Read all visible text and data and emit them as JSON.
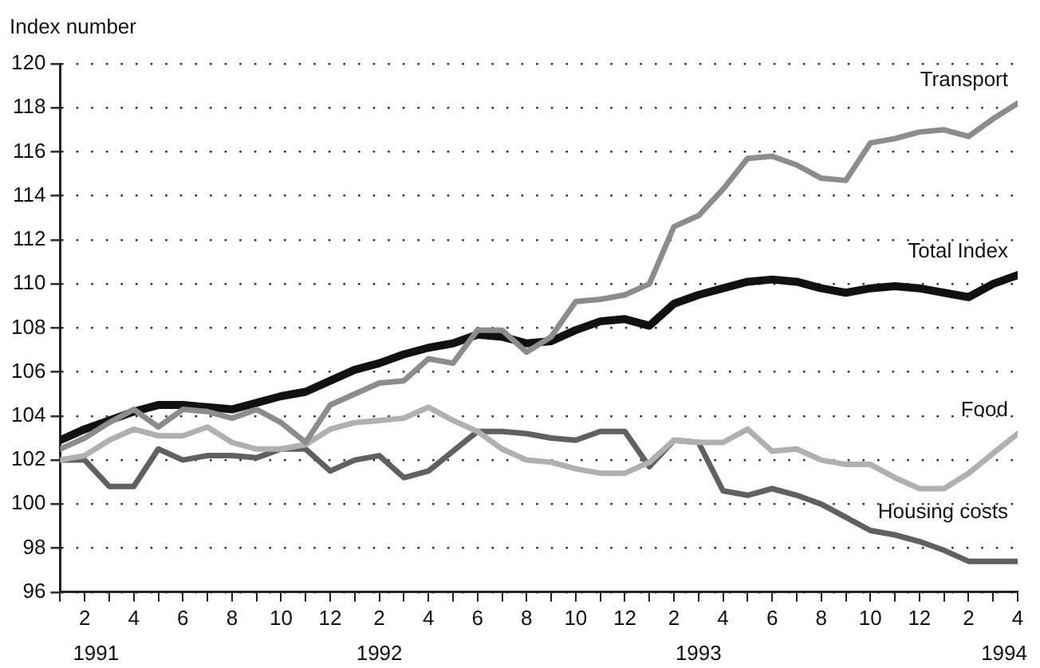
{
  "chart_data": {
    "type": "line",
    "ylabel": "Index number",
    "x": [
      "1991-01",
      "1991-02",
      "1991-03",
      "1991-04",
      "1991-05",
      "1991-06",
      "1991-07",
      "1991-08",
      "1991-09",
      "1991-10",
      "1991-11",
      "1991-12",
      "1992-01",
      "1992-02",
      "1992-03",
      "1992-04",
      "1992-05",
      "1992-06",
      "1992-07",
      "1992-08",
      "1992-09",
      "1992-10",
      "1992-11",
      "1992-12",
      "1993-01",
      "1993-02",
      "1993-03",
      "1993-04",
      "1993-05",
      "1993-06",
      "1993-07",
      "1993-08",
      "1993-09",
      "1993-10",
      "1993-11",
      "1993-12",
      "1994-01",
      "1994-02",
      "1994-03",
      "1994-04"
    ],
    "series": [
      {
        "name": "Transport",
        "color": "#8c8c8c",
        "values": [
          102.5,
          103.0,
          103.7,
          104.3,
          103.5,
          104.3,
          104.2,
          103.9,
          104.3,
          103.7,
          102.8,
          104.5,
          105.0,
          105.5,
          105.6,
          106.6,
          106.4,
          107.9,
          107.9,
          106.9,
          107.6,
          109.2,
          109.3,
          109.5,
          110.0,
          112.6,
          113.1,
          114.3,
          115.7,
          115.8,
          115.4,
          114.8,
          114.7,
          116.4,
          116.6,
          116.9,
          117.0,
          116.7,
          117.5,
          118.2
        ]
      },
      {
        "name": "Total Index",
        "color": "#111111",
        "values": [
          102.9,
          103.4,
          103.8,
          104.2,
          104.5,
          104.5,
          104.4,
          104.3,
          104.6,
          104.9,
          105.1,
          105.6,
          106.1,
          106.4,
          106.8,
          107.1,
          107.3,
          107.7,
          107.6,
          107.3,
          107.4,
          107.9,
          108.3,
          108.4,
          108.1,
          109.1,
          109.5,
          109.8,
          110.1,
          110.2,
          110.1,
          109.8,
          109.6,
          109.8,
          109.9,
          109.8,
          109.6,
          109.4,
          110.0,
          110.4
        ]
      },
      {
        "name": "Food",
        "color": "#b0b0b0",
        "values": [
          102.0,
          102.2,
          102.9,
          103.4,
          103.1,
          103.1,
          103.5,
          102.8,
          102.5,
          102.5,
          102.7,
          103.4,
          103.7,
          103.8,
          103.9,
          104.4,
          103.8,
          103.3,
          102.5,
          102.0,
          101.9,
          101.6,
          101.4,
          101.4,
          101.9,
          102.9,
          102.8,
          102.8,
          103.4,
          102.4,
          102.5,
          102.0,
          101.8,
          101.8,
          101.2,
          100.7,
          100.7,
          101.4,
          102.3,
          103.2
        ]
      },
      {
        "name": "Housing costs",
        "color": "#606060",
        "values": [
          102.0,
          102.0,
          100.8,
          100.8,
          102.5,
          102.0,
          102.2,
          102.2,
          102.1,
          102.5,
          102.5,
          101.5,
          102.0,
          102.2,
          101.2,
          101.5,
          102.4,
          103.3,
          103.3,
          103.2,
          103.0,
          102.9,
          103.3,
          103.3,
          101.7,
          102.9,
          102.8,
          100.6,
          100.4,
          100.7,
          100.4,
          100.0,
          99.4,
          98.8,
          98.6,
          98.3,
          97.9,
          97.4,
          97.4,
          97.4
        ]
      }
    ],
    "xlim": [
      "1991-01",
      "1994-04"
    ],
    "xticks": [
      {
        "value": "1991-01",
        "label": null
      },
      {
        "value": "1991-02",
        "label": "2"
      },
      {
        "value": "1991-03",
        "label": null
      },
      {
        "value": "1991-04",
        "label": "4"
      },
      {
        "value": "1991-05",
        "label": null
      },
      {
        "value": "1991-06",
        "label": "6"
      },
      {
        "value": "1991-07",
        "label": null
      },
      {
        "value": "1991-08",
        "label": "8"
      },
      {
        "value": "1991-09",
        "label": null
      },
      {
        "value": "1991-10",
        "label": "10"
      },
      {
        "value": "1991-11",
        "label": null
      },
      {
        "value": "1991-12",
        "label": "12"
      },
      {
        "value": "1992-01",
        "label": null
      },
      {
        "value": "1992-02",
        "label": "2"
      },
      {
        "value": "1992-03",
        "label": null
      },
      {
        "value": "1992-04",
        "label": "4"
      },
      {
        "value": "1992-05",
        "label": null
      },
      {
        "value": "1992-06",
        "label": "6"
      },
      {
        "value": "1992-07",
        "label": null
      },
      {
        "value": "1992-08",
        "label": "8"
      },
      {
        "value": "1992-09",
        "label": null
      },
      {
        "value": "1992-10",
        "label": "10"
      },
      {
        "value": "1992-11",
        "label": null
      },
      {
        "value": "1992-12",
        "label": "12"
      },
      {
        "value": "1993-01",
        "label": null
      },
      {
        "value": "1993-02",
        "label": "2"
      },
      {
        "value": "1993-03",
        "label": null
      },
      {
        "value": "1993-04",
        "label": "4"
      },
      {
        "value": "1993-05",
        "label": null
      },
      {
        "value": "1993-06",
        "label": "6"
      },
      {
        "value": "1993-07",
        "label": null
      },
      {
        "value": "1993-08",
        "label": "8"
      },
      {
        "value": "1993-09",
        "label": null
      },
      {
        "value": "1993-10",
        "label": "10"
      },
      {
        "value": "1993-11",
        "label": null
      },
      {
        "value": "1993-12",
        "label": "12"
      },
      {
        "value": "1994-01",
        "label": null
      },
      {
        "value": "1994-02",
        "label": "2"
      },
      {
        "value": "1994-03",
        "label": null
      },
      {
        "value": "1994-04",
        "label": "4"
      }
    ],
    "ylim": [
      96,
      120
    ],
    "yticks": [
      96,
      98,
      100,
      102,
      104,
      106,
      108,
      110,
      112,
      114,
      116,
      118,
      120
    ],
    "annotations": [
      "1991",
      "1992",
      "1993",
      "1994"
    ],
    "grid": "y",
    "legend": false,
    "marker": "none",
    "line_style": "solid"
  }
}
